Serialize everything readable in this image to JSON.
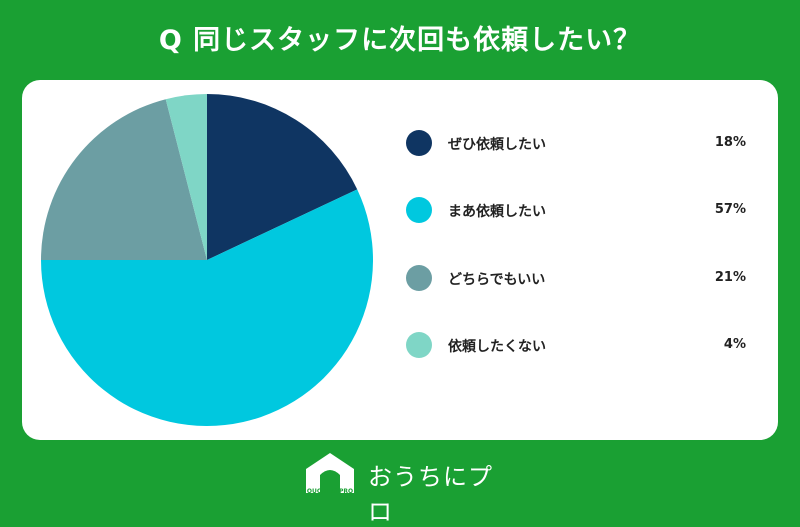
{
  "title": "Q 同じスタッフに次回も依頼したい？",
  "brand": {
    "name": "おうちにプロ",
    "logo_text": "OUCHI ni PRO"
  },
  "chart_data": {
    "type": "pie",
    "title": "Q 同じスタッフに次回も依頼したい？",
    "unit": "%",
    "slices": [
      {
        "label": "ぜひ依頼したい",
        "value": 18,
        "display": "18%",
        "color": "#0f3562"
      },
      {
        "label": "まあ依頼したい",
        "value": 57,
        "display": "57%",
        "color": "#00c8df"
      },
      {
        "label": "どちらでもいい",
        "value": 21,
        "display": "21%",
        "color": "#6c9ea3"
      },
      {
        "label": "依頼したくない",
        "value": 4,
        "display": "4%",
        "color": "#7fd6c6"
      }
    ],
    "legend_position": "right"
  }
}
